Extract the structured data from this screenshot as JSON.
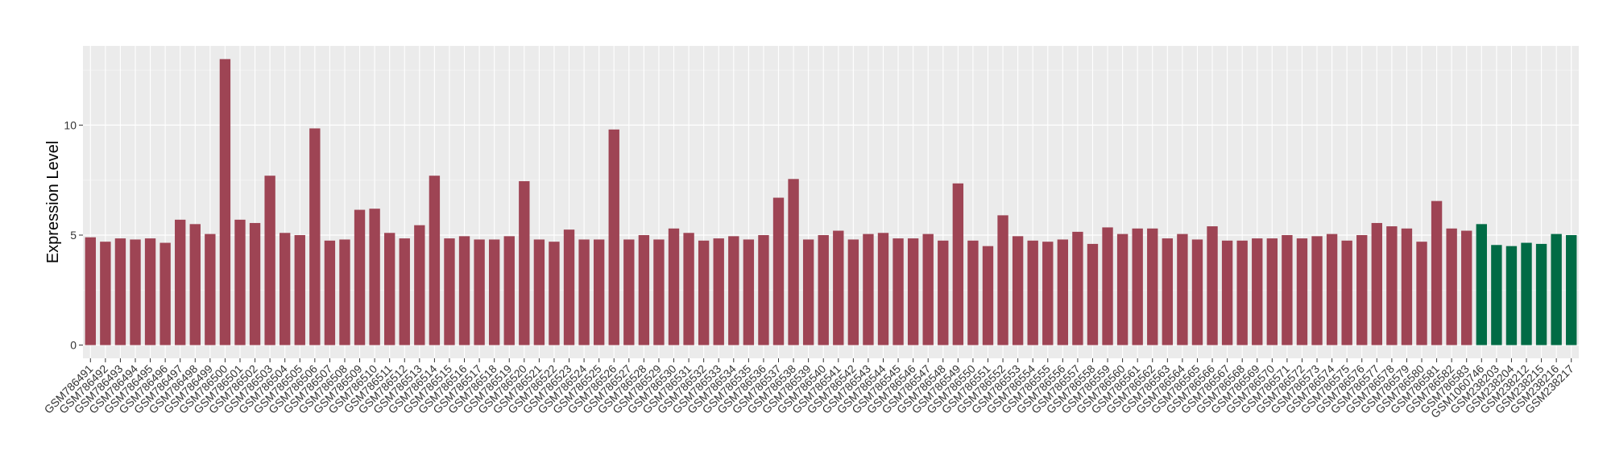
{
  "chart_data": {
    "type": "bar",
    "title": "",
    "xlabel": "",
    "ylabel": "Expression Level",
    "ylim": [
      -0.6,
      13.6
    ],
    "yticks": [
      0,
      5,
      10
    ],
    "grid": true,
    "legend": "none",
    "colors": {
      "panel_background": "#EBEBEB",
      "grid_major": "#FFFFFF",
      "grid_minor": "#F5F5F5",
      "group_a": "#9E4454",
      "group_b": "#006B45"
    },
    "categories": [
      "GSM786491",
      "GSM786492",
      "GSM786493",
      "GSM786494",
      "GSM786495",
      "GSM786496",
      "GSM786497",
      "GSM786498",
      "GSM786499",
      "GSM786500",
      "GSM786501",
      "GSM786502",
      "GSM786503",
      "GSM786504",
      "GSM786505",
      "GSM786506",
      "GSM786507",
      "GSM786508",
      "GSM786509",
      "GSM786510",
      "GSM786511",
      "GSM786512",
      "GSM786513",
      "GSM786514",
      "GSM786515",
      "GSM786516",
      "GSM786517",
      "GSM786518",
      "GSM786519",
      "GSM786520",
      "GSM786521",
      "GSM786522",
      "GSM786523",
      "GSM786524",
      "GSM786525",
      "GSM786526",
      "GSM786527",
      "GSM786528",
      "GSM786529",
      "GSM786530",
      "GSM786531",
      "GSM786532",
      "GSM786533",
      "GSM786534",
      "GSM786535",
      "GSM786536",
      "GSM786537",
      "GSM786538",
      "GSM786539",
      "GSM786540",
      "GSM786541",
      "GSM786542",
      "GSM786543",
      "GSM786544",
      "GSM786545",
      "GSM786546",
      "GSM786547",
      "GSM786548",
      "GSM786549",
      "GSM786550",
      "GSM786551",
      "GSM786552",
      "GSM786553",
      "GSM786554",
      "GSM786555",
      "GSM786556",
      "GSM786557",
      "GSM786558",
      "GSM786559",
      "GSM786560",
      "GSM786561",
      "GSM786562",
      "GSM786563",
      "GSM786564",
      "GSM786565",
      "GSM786566",
      "GSM786567",
      "GSM786568",
      "GSM786569",
      "GSM786570",
      "GSM786571",
      "GSM786572",
      "GSM786573",
      "GSM786574",
      "GSM786575",
      "GSM786576",
      "GSM786577",
      "GSM786578",
      "GSM786579",
      "GSM786580",
      "GSM786581",
      "GSM786582",
      "GSM786583",
      "GSM1060746",
      "GSM238203",
      "GSM238204",
      "GSM238212",
      "GSM238215",
      "GSM238216",
      "GSM238217"
    ],
    "values": [
      4.9,
      4.7,
      4.85,
      4.8,
      4.85,
      4.65,
      5.7,
      5.5,
      5.05,
      13.0,
      5.7,
      5.55,
      7.7,
      5.1,
      5.0,
      9.85,
      4.75,
      4.8,
      6.15,
      6.2,
      5.1,
      4.85,
      5.45,
      7.7,
      4.85,
      4.95,
      4.8,
      4.8,
      4.95,
      7.45,
      4.8,
      4.7,
      5.25,
      4.8,
      4.8,
      9.8,
      4.8,
      5.0,
      4.8,
      5.3,
      5.1,
      4.75,
      4.85,
      4.95,
      4.8,
      5.0,
      6.7,
      7.55,
      4.8,
      5.0,
      5.2,
      4.8,
      5.05,
      5.1,
      4.85,
      4.85,
      5.05,
      4.75,
      7.35,
      4.75,
      4.5,
      5.9,
      4.95,
      4.75,
      4.7,
      4.8,
      5.15,
      4.6,
      5.35,
      5.05,
      5.3,
      5.3,
      4.85,
      5.05,
      4.8,
      5.4,
      4.75,
      4.75,
      4.85,
      4.85,
      5.0,
      4.85,
      4.95,
      5.05,
      4.75,
      5.0,
      5.55,
      5.4,
      5.3,
      4.7,
      6.55,
      5.3,
      5.2,
      5.5,
      4.55,
      4.5,
      4.65,
      4.6,
      5.05,
      5.0
    ],
    "groups": [
      "a",
      "a",
      "a",
      "a",
      "a",
      "a",
      "a",
      "a",
      "a",
      "a",
      "a",
      "a",
      "a",
      "a",
      "a",
      "a",
      "a",
      "a",
      "a",
      "a",
      "a",
      "a",
      "a",
      "a",
      "a",
      "a",
      "a",
      "a",
      "a",
      "a",
      "a",
      "a",
      "a",
      "a",
      "a",
      "a",
      "a",
      "a",
      "a",
      "a",
      "a",
      "a",
      "a",
      "a",
      "a",
      "a",
      "a",
      "a",
      "a",
      "a",
      "a",
      "a",
      "a",
      "a",
      "a",
      "a",
      "a",
      "a",
      "a",
      "a",
      "a",
      "a",
      "a",
      "a",
      "a",
      "a",
      "a",
      "a",
      "a",
      "a",
      "a",
      "a",
      "a",
      "a",
      "a",
      "a",
      "a",
      "a",
      "a",
      "a",
      "a",
      "a",
      "a",
      "a",
      "a",
      "a",
      "a",
      "a",
      "a",
      "a",
      "a",
      "a",
      "a",
      "b",
      "b",
      "b",
      "b",
      "b",
      "b",
      "b"
    ]
  }
}
